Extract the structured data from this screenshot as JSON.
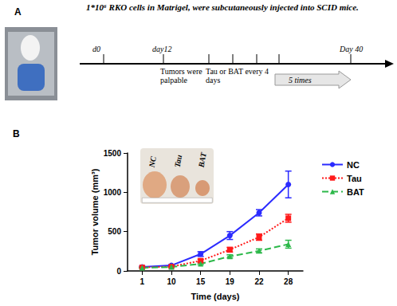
{
  "panel_labels": [
    "A",
    "B"
  ],
  "timeline": {
    "title": "1*10⁶ RKO cells in Matrigel, were subcutaneously injected into SCID mice.",
    "ticks": [
      {
        "above": "d0"
      },
      {
        "above": "day12",
        "below": "Tumors were palpable"
      },
      {
        "below": "Tau or BAT every 4 days"
      },
      {},
      {},
      {},
      {
        "above": "Day 40"
      }
    ],
    "arrow_label": "5 times"
  },
  "chart_data": {
    "type": "line",
    "x_label": "Time (days)",
    "y_label": "Tumor volume (mm³)",
    "categories": [
      "1",
      "10",
      "15",
      "19",
      "22",
      "28"
    ],
    "ylim": [
      0,
      1500
    ],
    "yticks": [
      0,
      500,
      1000,
      1500
    ],
    "grid": false,
    "legend": "upper right",
    "inset_labels": [
      "NC",
      "Tau",
      "BAT"
    ],
    "series": [
      {
        "name": "NC",
        "color": "#2b2bff",
        "marker": "circle",
        "line_style": "solid",
        "values": [
          50,
          70,
          215,
          450,
          740,
          1100
        ],
        "errors": [
          10,
          10,
          30,
          50,
          40,
          170
        ]
      },
      {
        "name": "Tau",
        "color": "#ff1a1a",
        "marker": "square",
        "line_style": "dotted",
        "values": [
          45,
          55,
          130,
          270,
          430,
          670
        ],
        "errors": [
          5,
          5,
          20,
          30,
          40,
          50
        ]
      },
      {
        "name": "BAT",
        "color": "#2db84a",
        "marker": "triangle",
        "line_style": "dashed",
        "values": [
          40,
          50,
          90,
          185,
          255,
          340
        ],
        "errors": [
          5,
          5,
          10,
          20,
          25,
          50
        ]
      }
    ]
  }
}
